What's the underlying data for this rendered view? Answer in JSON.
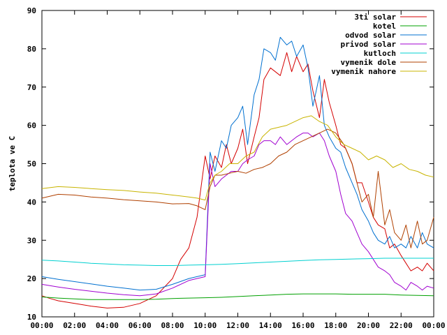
{
  "chart_data": {
    "type": "line",
    "title": "",
    "xlabel": "",
    "ylabel": "teplota ve C",
    "ylim": [
      10,
      90
    ],
    "xlim": [
      0,
      24
    ],
    "grid": false,
    "legend_position": "top-right",
    "y_ticks": [
      "10",
      "20",
      "30",
      "40",
      "50",
      "60",
      "70",
      "80",
      "90"
    ],
    "x_ticks": [
      "00:00",
      "02:00",
      "04:00",
      "06:00",
      "08:00",
      "10:00",
      "12:00",
      "14:00",
      "16:00",
      "18:00",
      "20:00",
      "22:00",
      "00:00"
    ],
    "series": [
      {
        "name": "3ti solar",
        "color": "#d40000",
        "x": [
          0,
          0.5,
          1,
          2,
          3,
          4,
          5,
          6,
          7,
          8,
          8.5,
          9,
          9.5,
          10,
          10.3,
          10.6,
          11,
          11.3,
          11.6,
          12,
          12.3,
          12.6,
          13,
          13.3,
          13.6,
          14,
          14.3,
          14.6,
          15,
          15.3,
          15.6,
          16,
          16.3,
          16.6,
          17,
          17.3,
          17.6,
          18,
          18.3,
          18.6,
          19,
          19.3,
          19.6,
          20,
          20.3,
          20.6,
          21,
          21.3,
          21.6,
          22,
          22.3,
          22.6,
          23,
          23.3,
          23.6,
          24
        ],
        "y": [
          15.5,
          14.8,
          14.2,
          13.5,
          12.8,
          12.3,
          12.5,
          13.5,
          15.5,
          20,
          25,
          28,
          36,
          52,
          46,
          52,
          49,
          55,
          50,
          54,
          59,
          50,
          57,
          62,
          72,
          75,
          74,
          73,
          79,
          74,
          78,
          74,
          76,
          69,
          62,
          72,
          66,
          60,
          55,
          54,
          50,
          45,
          45,
          40,
          36,
          34,
          33,
          28,
          29,
          26,
          24,
          22,
          23,
          22,
          24,
          22
        ]
      },
      {
        "name": "kotel",
        "color": "#00a000",
        "x": [
          0,
          1,
          2,
          3,
          4,
          5,
          6,
          7,
          8,
          9,
          10,
          11,
          12,
          13,
          14,
          15,
          16,
          17,
          18,
          19,
          20,
          21,
          22,
          23,
          24
        ],
        "y": [
          15.2,
          14.9,
          14.7,
          14.5,
          14.5,
          14.5,
          14.5,
          14.6,
          14.8,
          14.9,
          15,
          15.1,
          15.3,
          15.5,
          15.7,
          15.9,
          16,
          16,
          16,
          15.9,
          15.9,
          15.9,
          15.7,
          15.6,
          15.5
        ]
      },
      {
        "name": "odvod solar",
        "color": "#0070d0",
        "x": [
          0,
          1,
          2,
          3,
          4,
          5,
          6,
          7,
          8,
          9,
          10,
          10.3,
          10.6,
          11,
          11.3,
          11.6,
          12,
          12.3,
          12.6,
          13,
          13.3,
          13.6,
          14,
          14.3,
          14.6,
          15,
          15.3,
          15.6,
          16,
          16.3,
          16.6,
          17,
          17.3,
          17.6,
          18,
          18.3,
          18.6,
          19,
          19.3,
          19.6,
          20,
          20.3,
          20.6,
          21,
          21.3,
          21.6,
          22,
          22.3,
          22.6,
          23,
          23.3,
          23.6,
          24
        ],
        "y": [
          20.5,
          19.8,
          19.2,
          18.6,
          18.0,
          17.5,
          17.0,
          17.2,
          18.5,
          20,
          21,
          53,
          48,
          56,
          54,
          60,
          62,
          65,
          55,
          68,
          72,
          80,
          79,
          77,
          83,
          81,
          82,
          78,
          81,
          75,
          65,
          73,
          60,
          57,
          54,
          53,
          49,
          45,
          42,
          38,
          35,
          32,
          30,
          29,
          31,
          28,
          29,
          28,
          31,
          28,
          32,
          29,
          28
        ]
      },
      {
        "name": "privod solar",
        "color": "#a000d0",
        "x": [
          0,
          1,
          2,
          3,
          4,
          5,
          6,
          7,
          8,
          9,
          10,
          10.3,
          10.6,
          11,
          11.3,
          11.6,
          12,
          12.3,
          12.6,
          13,
          13.3,
          13.6,
          14,
          14.3,
          14.6,
          15,
          15.3,
          15.6,
          16,
          16.3,
          16.6,
          17,
          17.3,
          17.6,
          18,
          18.3,
          18.6,
          19,
          19.3,
          19.6,
          20,
          20.3,
          20.6,
          21,
          21.3,
          21.6,
          22,
          22.3,
          22.6,
          23,
          23.3,
          23.6,
          24
        ],
        "y": [
          18.5,
          17.8,
          17.2,
          16.7,
          16.2,
          15.8,
          15.5,
          16.0,
          17.5,
          19.5,
          20.5,
          50,
          44,
          46,
          47,
          48,
          48,
          50,
          51,
          52,
          55,
          56,
          56,
          55,
          57,
          55,
          56,
          57,
          58,
          58,
          57,
          58,
          56,
          52,
          48,
          42,
          37,
          35,
          32,
          29,
          27,
          25,
          23,
          22,
          21,
          19,
          18,
          17,
          19,
          18,
          17,
          18,
          17.5
        ]
      },
      {
        "name": "kutloch",
        "color": "#00d0d0",
        "x": [
          0,
          1,
          2,
          3,
          4,
          5,
          6,
          7,
          8,
          9,
          10,
          11,
          12,
          13,
          14,
          15,
          16,
          17,
          18,
          19,
          20,
          21,
          22,
          23,
          24
        ],
        "y": [
          24.8,
          24.6,
          24.3,
          24.0,
          23.8,
          23.6,
          23.5,
          23.4,
          23.4,
          23.5,
          23.6,
          23.7,
          23.9,
          24.1,
          24.3,
          24.5,
          24.7,
          24.9,
          25.0,
          25.1,
          25.2,
          25.3,
          25.3,
          25.3,
          25.3
        ]
      },
      {
        "name": "vymenik dole",
        "color": "#b04000",
        "x": [
          0,
          1,
          2,
          3,
          4,
          5,
          6,
          7,
          8,
          9,
          9.5,
          10,
          10.3,
          10.6,
          11,
          11.5,
          12,
          12.5,
          13,
          13.5,
          14,
          14.5,
          15,
          15.5,
          16,
          16.5,
          17,
          17.5,
          18,
          18.5,
          19,
          19.3,
          19.6,
          20,
          20.3,
          20.6,
          21,
          21.3,
          21.6,
          22,
          22.3,
          22.6,
          23,
          23.3,
          23.6,
          24
        ],
        "y": [
          41,
          42,
          41.8,
          41.3,
          41,
          40.6,
          40.3,
          40,
          39.5,
          39.6,
          39,
          38,
          44,
          47,
          47,
          47.5,
          48,
          47.5,
          48.5,
          49,
          50,
          52,
          53,
          55,
          56,
          57,
          58,
          59,
          58,
          55,
          50,
          45,
          40,
          42,
          36,
          48,
          34,
          38,
          32,
          30,
          34,
          28,
          35,
          29,
          30,
          36
        ]
      },
      {
        "name": "vymenik nahore",
        "color": "#c8b400",
        "x": [
          0,
          1,
          2,
          3,
          4,
          5,
          6,
          7,
          8,
          9,
          9.5,
          10,
          10.3,
          10.6,
          11,
          11.5,
          12,
          12.5,
          13,
          13.5,
          14,
          14.5,
          15,
          15.5,
          16,
          16.5,
          17,
          17.5,
          18,
          18.5,
          19,
          19.5,
          20,
          20.5,
          21,
          21.5,
          22,
          22.5,
          23,
          23.5,
          24
        ],
        "y": [
          43.5,
          44,
          43.8,
          43.5,
          43.2,
          43,
          42.6,
          42.3,
          41.8,
          41.3,
          41,
          40.5,
          45,
          47,
          48,
          50,
          50,
          52,
          53,
          57,
          59,
          59.5,
          60,
          61,
          62,
          62.5,
          61,
          60,
          57,
          55,
          54,
          53,
          51,
          52,
          51,
          49,
          50,
          48.5,
          48,
          47,
          46.5
        ]
      }
    ]
  }
}
